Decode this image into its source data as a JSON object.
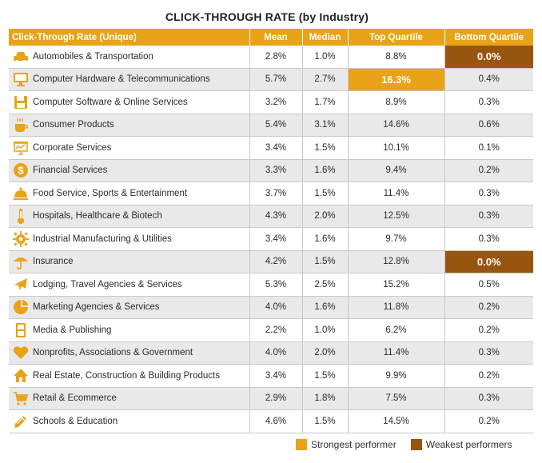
{
  "title": "CLICK-THROUGH RATE (by Industry)",
  "colors": {
    "header": "#e8a317",
    "strongest": "#e8a317",
    "weakest": "#98550f",
    "icon": "#e8a317"
  },
  "chart_data": {
    "type": "table",
    "title": "CLICK-THROUGH RATE (by Industry)",
    "columns": [
      "Click-Through Rate (Unique)",
      "Mean",
      "Median",
      "Top Quartile",
      "Bottom Quartile"
    ],
    "rows": [
      {
        "icon": "car-icon",
        "industry": "Automobiles & Transportation",
        "mean": "2.8%",
        "median": "1.0%",
        "top": "8.8%",
        "bottom": "0.0%",
        "highlight_top": "",
        "highlight_bottom": "weak"
      },
      {
        "icon": "monitor-icon",
        "industry": "Computer Hardware & Telecommunications",
        "mean": "5.7%",
        "median": "2.7%",
        "top": "16.3%",
        "bottom": "0.4%",
        "highlight_top": "strong",
        "highlight_bottom": ""
      },
      {
        "icon": "floppy-icon",
        "industry": "Computer Software & Online Services",
        "mean": "3.2%",
        "median": "1.7%",
        "top": "8.9%",
        "bottom": "0.3%",
        "highlight_top": "",
        "highlight_bottom": ""
      },
      {
        "icon": "coffee-cup-icon",
        "industry": "Consumer Products",
        "mean": "5.4%",
        "median": "3.1%",
        "top": "14.6%",
        "bottom": "0.6%",
        "highlight_top": "",
        "highlight_bottom": ""
      },
      {
        "icon": "presentation-icon",
        "industry": "Corporate Services",
        "mean": "3.4%",
        "median": "1.5%",
        "top": "10.1%",
        "bottom": "0.1%",
        "highlight_top": "",
        "highlight_bottom": ""
      },
      {
        "icon": "dollar-coin-icon",
        "industry": "Financial Services",
        "mean": "3.3%",
        "median": "1.6%",
        "top": "9.4%",
        "bottom": "0.2%",
        "highlight_top": "",
        "highlight_bottom": ""
      },
      {
        "icon": "service-bell-icon",
        "industry": "Food Service, Sports & Entertainment",
        "mean": "3.7%",
        "median": "1.5%",
        "top": "11.4%",
        "bottom": "0.3%",
        "highlight_top": "",
        "highlight_bottom": ""
      },
      {
        "icon": "thermometer-icon",
        "industry": "Hospitals, Healthcare & Biotech",
        "mean": "4.3%",
        "median": "2.0%",
        "top": "12.5%",
        "bottom": "0.3%",
        "highlight_top": "",
        "highlight_bottom": ""
      },
      {
        "icon": "gear-icon",
        "industry": "Industrial Manufacturing & Utilities",
        "mean": "3.4%",
        "median": "1.6%",
        "top": "9.7%",
        "bottom": "0.3%",
        "highlight_top": "",
        "highlight_bottom": ""
      },
      {
        "icon": "umbrella-icon",
        "industry": "Insurance",
        "mean": "4.2%",
        "median": "1.5%",
        "top": "12.8%",
        "bottom": "0.0%",
        "highlight_top": "",
        "highlight_bottom": "weak"
      },
      {
        "icon": "airplane-icon",
        "industry": "Lodging, Travel Agencies & Services",
        "mean": "5.3%",
        "median": "2.5%",
        "top": "15.2%",
        "bottom": "0.5%",
        "highlight_top": "",
        "highlight_bottom": ""
      },
      {
        "icon": "pie-chart-icon",
        "industry": "Marketing Agencies & Services",
        "mean": "4.0%",
        "median": "1.6%",
        "top": "11.8%",
        "bottom": "0.2%",
        "highlight_top": "",
        "highlight_bottom": ""
      },
      {
        "icon": "media-icon",
        "industry": "Media & Publishing",
        "mean": "2.2%",
        "median": "1.0%",
        "top": "6.2%",
        "bottom": "0.2%",
        "highlight_top": "",
        "highlight_bottom": ""
      },
      {
        "icon": "heart-icon",
        "industry": "Nonprofits, Associations & Government",
        "mean": "4.0%",
        "median": "2.0%",
        "top": "11.4%",
        "bottom": "0.3%",
        "highlight_top": "",
        "highlight_bottom": ""
      },
      {
        "icon": "house-icon",
        "industry": "Real Estate, Construction & Building Products",
        "mean": "3.4%",
        "median": "1.5%",
        "top": "9.9%",
        "bottom": "0.2%",
        "highlight_top": "",
        "highlight_bottom": ""
      },
      {
        "icon": "shopping-cart-icon",
        "industry": "Retail & Ecommerce",
        "mean": "2.9%",
        "median": "1.8%",
        "top": "7.5%",
        "bottom": "0.3%",
        "highlight_top": "",
        "highlight_bottom": ""
      },
      {
        "icon": "pencil-icon",
        "industry": "Schools & Education",
        "mean": "4.6%",
        "median": "1.5%",
        "top": "14.5%",
        "bottom": "0.2%",
        "highlight_top": "",
        "highlight_bottom": ""
      }
    ]
  },
  "legend": {
    "strongest": "Strongest performer",
    "weakest": "Weakest performers"
  }
}
